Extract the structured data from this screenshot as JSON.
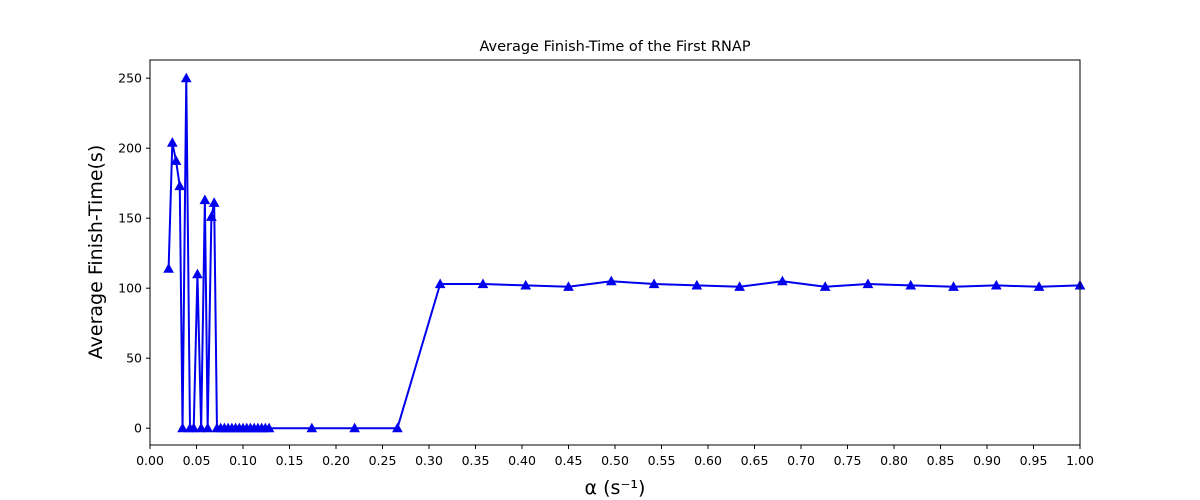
{
  "chart_data": {
    "type": "line",
    "title": "Average Finish-Time of the First RNAP",
    "xlabel": "α (s⁻¹)",
    "ylabel": "Average Finish-Time(s)",
    "xlim": [
      0.0,
      1.0
    ],
    "ylim": [
      -12,
      263
    ],
    "xticks": [
      "0.00",
      "0.05",
      "0.10",
      "0.15",
      "0.20",
      "0.25",
      "0.30",
      "0.35",
      "0.40",
      "0.45",
      "0.50",
      "0.55",
      "0.60",
      "0.65",
      "0.70",
      "0.75",
      "0.80",
      "0.85",
      "0.90",
      "0.95",
      "1.00"
    ],
    "yticks": [
      "0",
      "50",
      "100",
      "150",
      "200",
      "250"
    ],
    "grid": false,
    "series": [
      {
        "color": "#0000ee",
        "marker": "triangle-up",
        "x": [
          0.02,
          0.024,
          0.028,
          0.032,
          0.035,
          0.039,
          0.043,
          0.047,
          0.051,
          0.055,
          0.059,
          0.062,
          0.066,
          0.069,
          0.072,
          0.076,
          0.08,
          0.084,
          0.088,
          0.092,
          0.096,
          0.1,
          0.104,
          0.108,
          0.112,
          0.116,
          0.12,
          0.124,
          0.128,
          0.174,
          0.22,
          0.266,
          0.312,
          0.358,
          0.404,
          0.45,
          0.496,
          0.542,
          0.588,
          0.634,
          0.68,
          0.726,
          0.772,
          0.818,
          0.864,
          0.91,
          0.956,
          1.0
        ],
        "y": [
          114,
          204,
          191,
          173,
          0,
          250,
          0,
          0,
          110,
          0,
          163,
          0,
          151,
          161,
          0,
          0,
          0,
          0,
          0,
          0,
          0,
          0,
          0,
          0,
          0,
          0,
          0,
          0,
          0,
          0,
          0,
          0,
          103,
          103,
          102,
          101,
          105,
          103,
          102,
          101,
          105,
          101,
          103,
          102,
          101,
          102,
          101,
          102
        ]
      }
    ]
  }
}
